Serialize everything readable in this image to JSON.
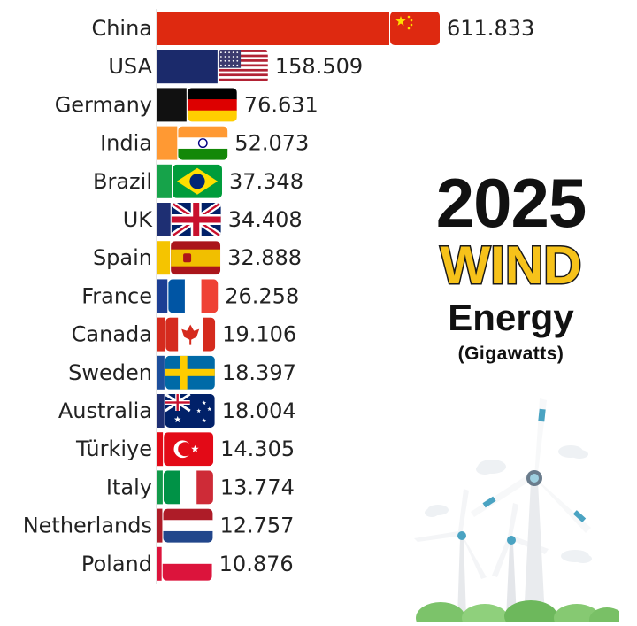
{
  "title": {
    "year": "2025",
    "highlight": "WIND",
    "subject": "Energy",
    "unit": "(Gigawatts)"
  },
  "chart_data": {
    "type": "bar",
    "orientation": "horizontal",
    "title": "2025 WIND Energy",
    "unit": "(Gigawatts)",
    "categories": [
      "China",
      "USA",
      "Germany",
      "India",
      "Brazil",
      "UK",
      "Spain",
      "France",
      "Canada",
      "Sweden",
      "Australia",
      "Türkiye",
      "Italy",
      "Netherlands",
      "Poland"
    ],
    "values": [
      611.833,
      158.509,
      76.631,
      52.073,
      37.348,
      34.408,
      32.888,
      26.258,
      19.106,
      18.397,
      18.004,
      14.305,
      13.774,
      12.757,
      10.876
    ],
    "value_labels": [
      "611.833",
      "158.509",
      "76.631",
      "52.073",
      "37.348",
      "34.408",
      "32.888",
      "26.258",
      "19.106",
      "18.397",
      "18.004",
      "14.305",
      "13.774",
      "12.757",
      "10.876"
    ],
    "bar_colors": [
      "#de2910",
      "#1b2a6b",
      "#111111",
      "#ff9933",
      "#16a34a",
      "#1e2f73",
      "#f5c400",
      "#1c3f94",
      "#d52b1e",
      "#1d4f9c",
      "#1e2f73",
      "#e30a17",
      "#129a4a",
      "#ae1c28",
      "#dc143c"
    ],
    "flag_icons": [
      "china-flag-icon",
      "usa-flag-icon",
      "germany-flag-icon",
      "india-flag-icon",
      "brazil-flag-icon",
      "uk-flag-icon",
      "spain-flag-icon",
      "france-flag-icon",
      "canada-flag-icon",
      "sweden-flag-icon",
      "australia-flag-icon",
      "turkiye-flag-icon",
      "italy-flag-icon",
      "netherlands-flag-icon",
      "poland-flag-icon"
    ],
    "legend": "none",
    "grid": false
  }
}
